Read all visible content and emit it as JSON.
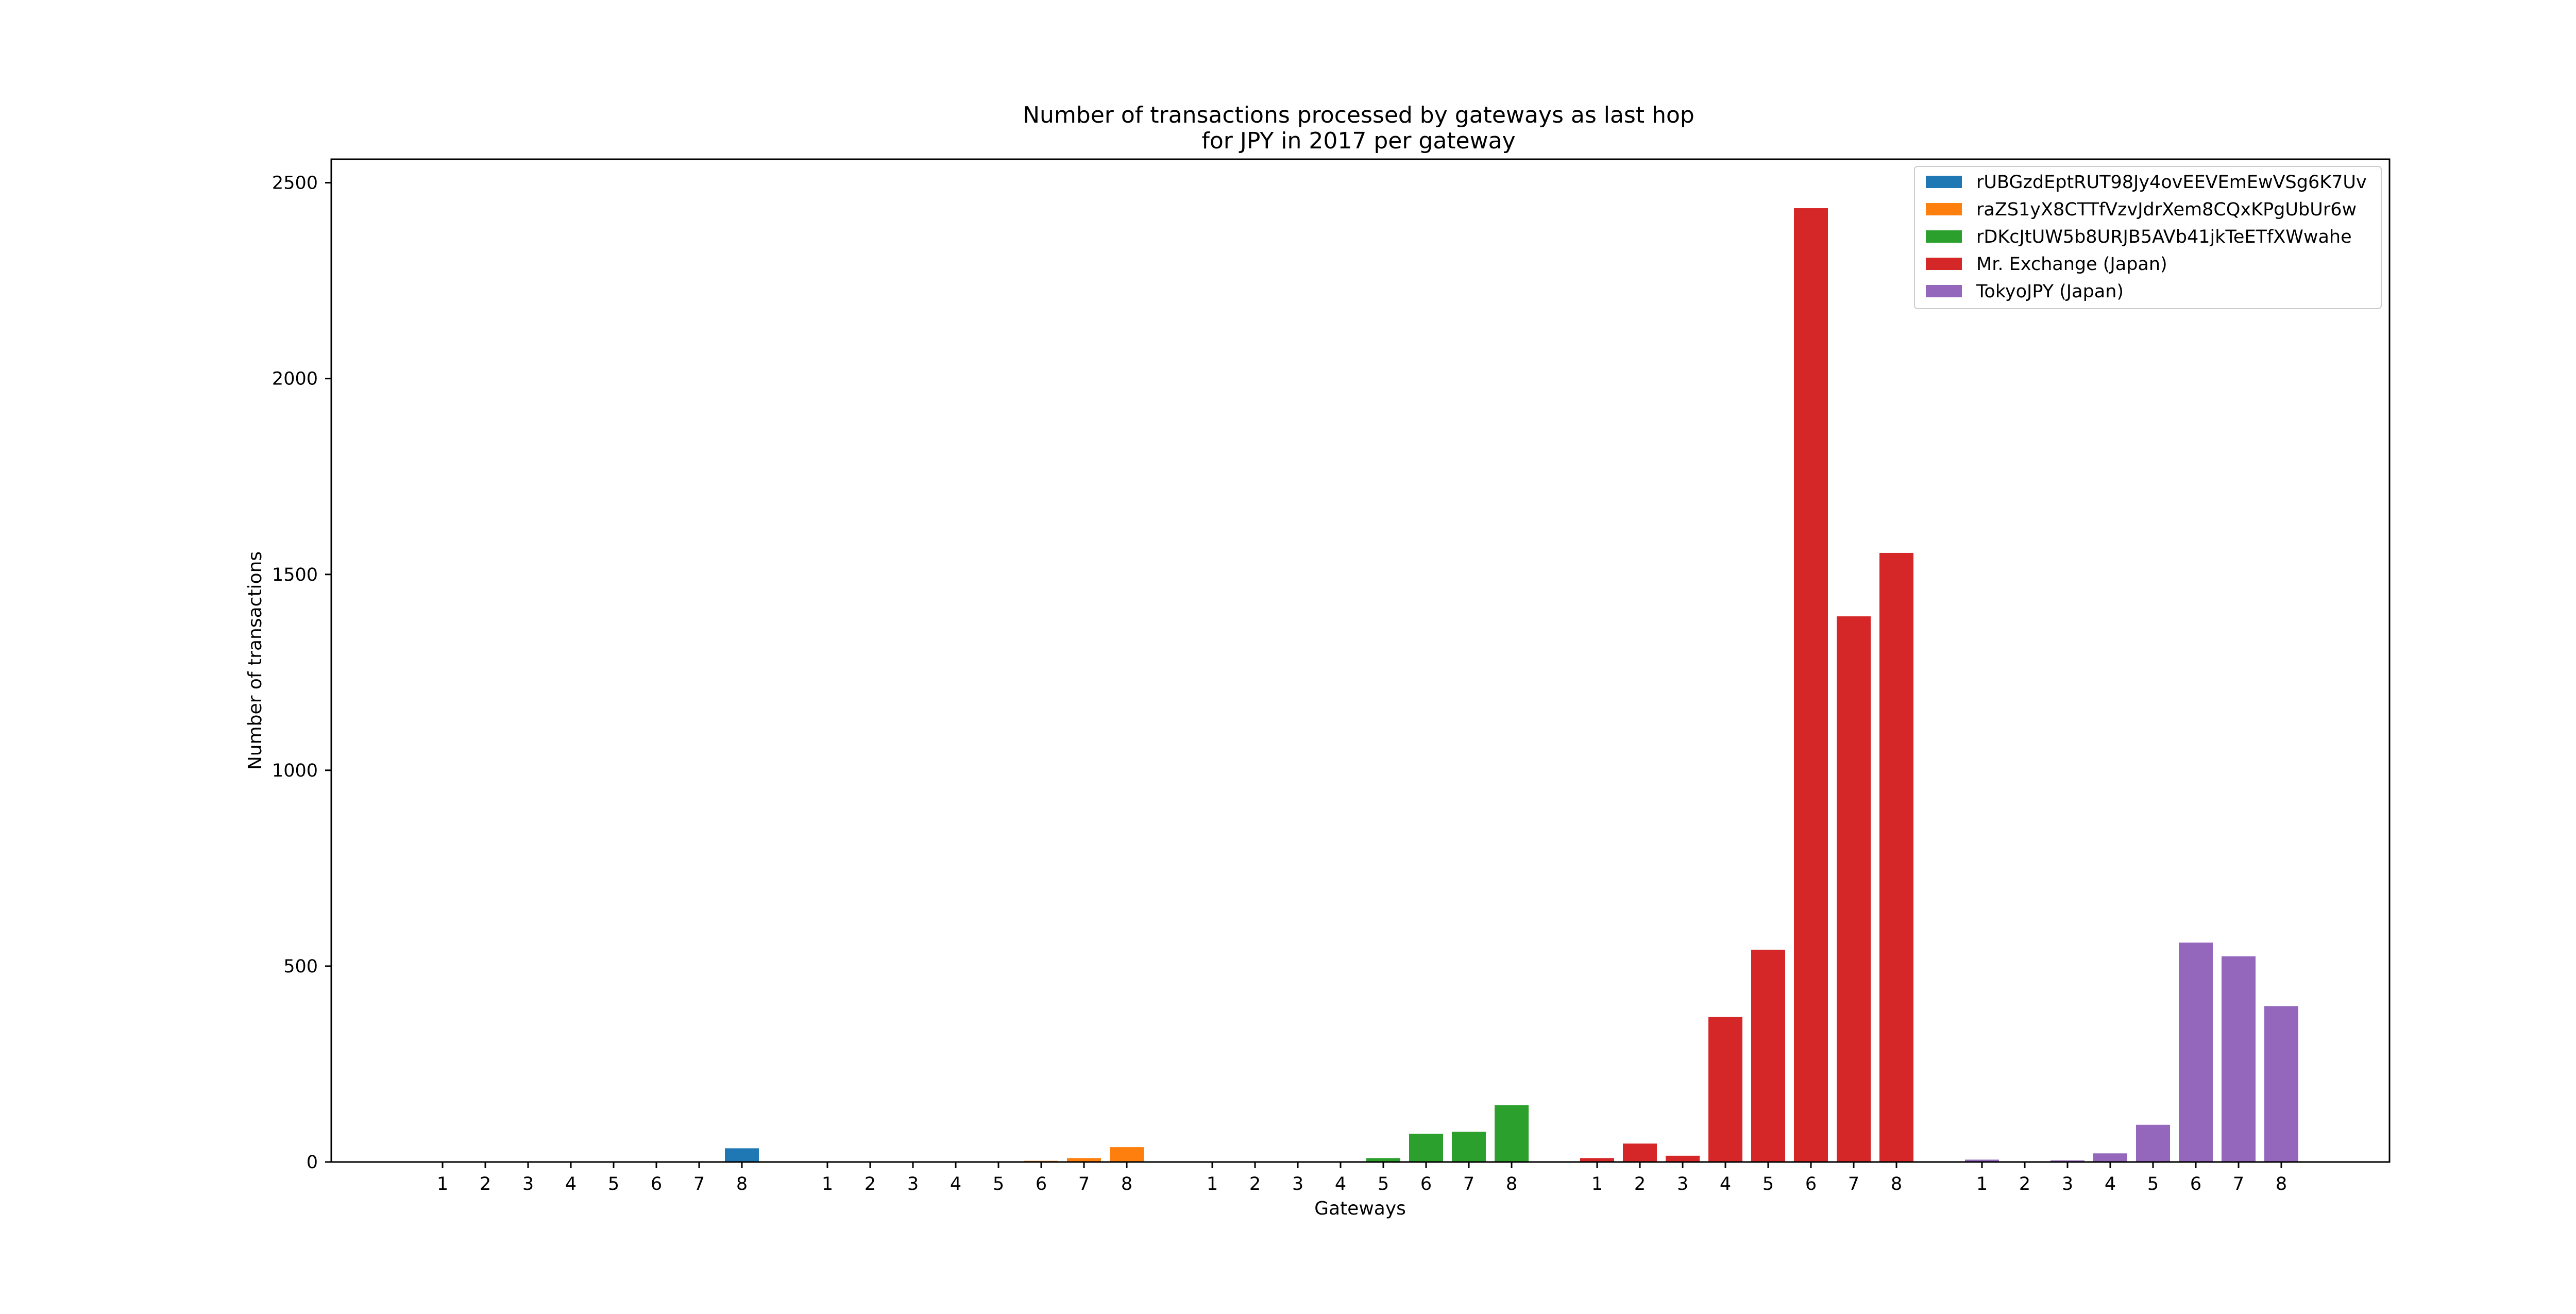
{
  "chart_data": {
    "type": "bar",
    "title": [
      "Number of transactions processed by gateways as last hop",
      "for JPY in 2017 per gateway"
    ],
    "xlabel": "Gateways",
    "ylabel": "Number of transactions",
    "ylim": [
      0,
      2560
    ],
    "yticks": [
      "0",
      "500",
      "1000",
      "1500",
      "2000",
      "2500"
    ],
    "categories": [
      "1",
      "2",
      "3",
      "4",
      "5",
      "6",
      "7",
      "8"
    ],
    "legend_position": "top-right",
    "grid": false,
    "series": [
      {
        "name": "rUBGzdEptRUT98Jy4ovEEVEmEwVSg6K7Uv",
        "color": "#1f77b4",
        "values": [
          0,
          0,
          0,
          0,
          0,
          0,
          0,
          35
        ]
      },
      {
        "name": "raZS1yX8CTTfVzvJdrXem8CQxKPgUbUr6w",
        "color": "#ff7f0e",
        "values": [
          0,
          0,
          0,
          0,
          0,
          3,
          10,
          38
        ]
      },
      {
        "name": "rDKcJtUW5b8URJB5AVb41jkTeETfXWwahe",
        "color": "#2ca02c",
        "values": [
          0,
          0,
          0,
          2,
          10,
          72,
          77,
          145
        ]
      },
      {
        "name": "Mr. Exchange (Japan)",
        "color": "#d62728",
        "values": [
          10,
          47,
          16,
          370,
          542,
          2435,
          1393,
          1555
        ]
      },
      {
        "name": "TokyoJPY (Japan)",
        "color": "#9467bd",
        "values": [
          6,
          0,
          4,
          22,
          95,
          560,
          525,
          398
        ]
      }
    ]
  }
}
